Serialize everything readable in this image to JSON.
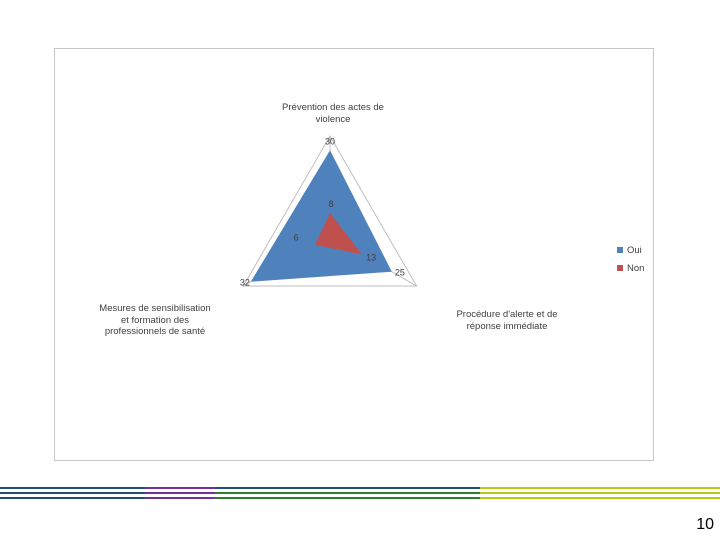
{
  "page_number": "10",
  "colors": {
    "oui": "#4f81bd",
    "non": "#c0504d",
    "grid": "#bfbfbf",
    "stripe_blue": "#1f4e79",
    "stripe_purple": "#7030a0",
    "stripe_green": "#2e7d32",
    "stripe_lime": "#b5cc18"
  },
  "chart_data": {
    "type": "radar",
    "axes": [
      "Prévention des actes de\nviolence",
      "Procédure d'alerte et de\nréponse immédiate",
      "Mesures de sensibilisation\net formation des\nprofessionnels de santé"
    ],
    "series": [
      {
        "name": "Oui",
        "values": [
          30,
          25,
          32
        ],
        "color": "#4f81bd"
      },
      {
        "name": "Non",
        "values": [
          8,
          13,
          6
        ],
        "color": "#c0504d"
      }
    ],
    "legend": [
      {
        "label": "Oui",
        "color": "#4f81bd"
      },
      {
        "label": "Non",
        "color": "#c0504d"
      }
    ],
    "grid": true,
    "legend_position": "right"
  }
}
